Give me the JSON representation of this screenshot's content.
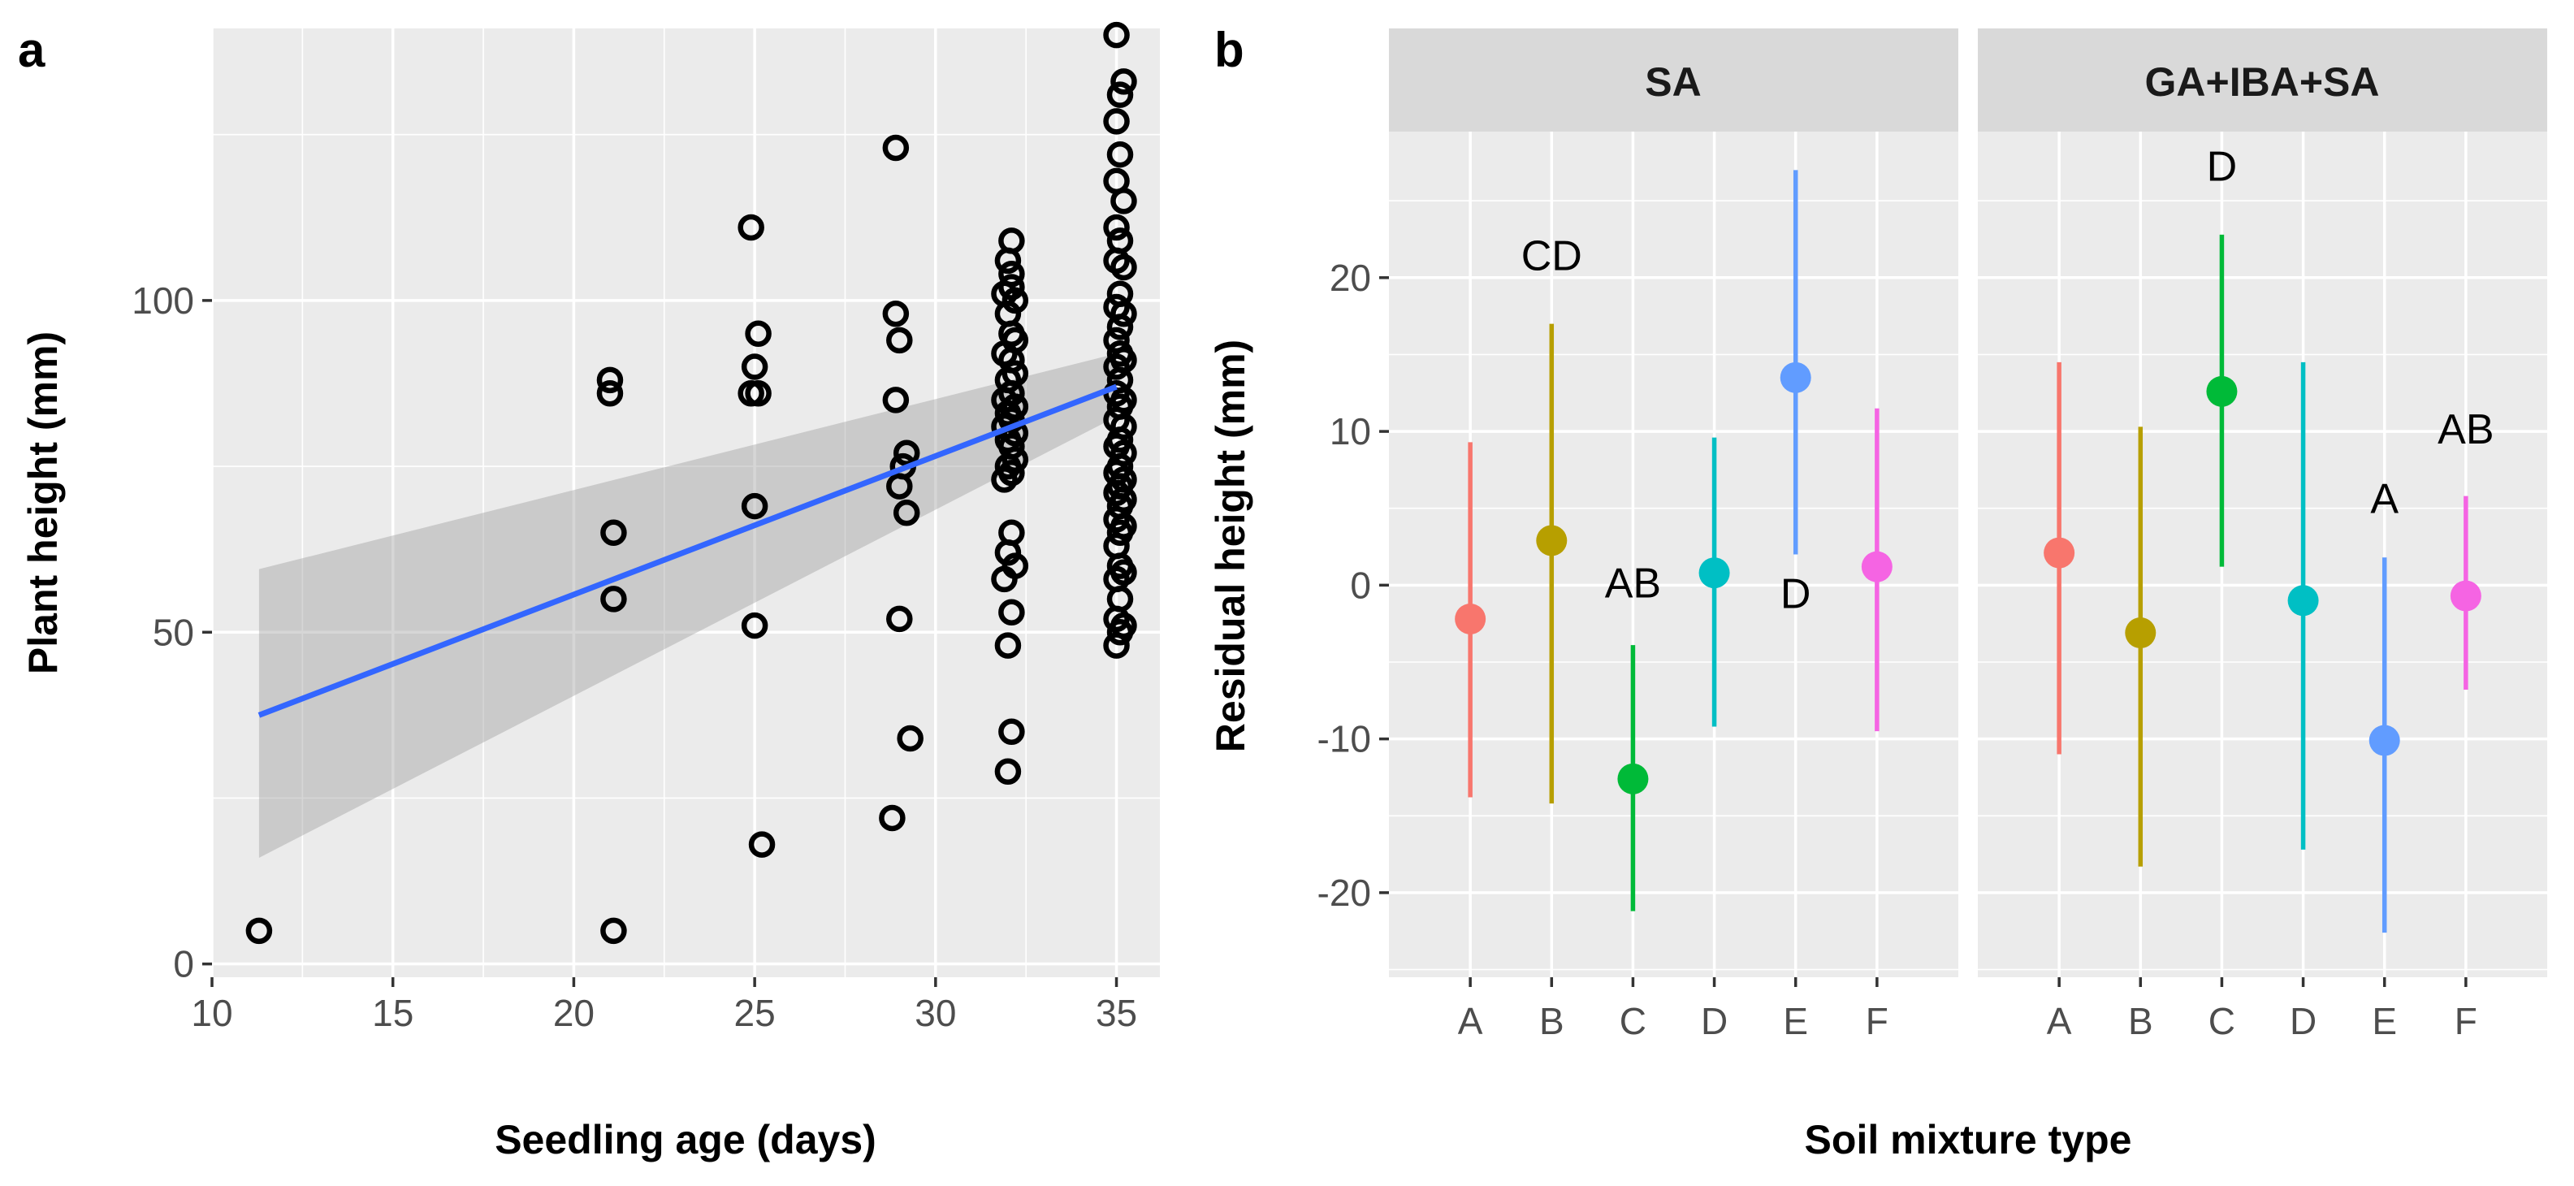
{
  "chart_data": [
    {
      "panel": "a",
      "type": "scatter",
      "xlabel": "Seedling age (days)",
      "ylabel": "Plant height (mm)",
      "xlim": [
        10,
        36.2
      ],
      "ylim": [
        -2,
        141
      ],
      "x_ticks": [
        10,
        15,
        20,
        25,
        30,
        35
      ],
      "y_ticks": [
        0,
        50,
        100
      ],
      "points": [
        [
          11.3,
          5
        ],
        [
          21.0,
          86
        ],
        [
          21.0,
          88
        ],
        [
          21.1,
          65
        ],
        [
          21.1,
          55
        ],
        [
          21.1,
          5
        ],
        [
          24.9,
          111
        ],
        [
          25.1,
          95
        ],
        [
          25.0,
          90
        ],
        [
          24.9,
          86
        ],
        [
          25.1,
          86
        ],
        [
          25.0,
          69
        ],
        [
          25.0,
          51
        ],
        [
          25.2,
          18
        ],
        [
          28.9,
          123
        ],
        [
          28.9,
          98
        ],
        [
          29.0,
          94
        ],
        [
          28.9,
          85
        ],
        [
          29.2,
          77
        ],
        [
          29.1,
          75
        ],
        [
          29.0,
          72
        ],
        [
          29.2,
          68
        ],
        [
          29.0,
          52
        ],
        [
          29.3,
          34
        ],
        [
          28.8,
          22
        ],
        [
          32.1,
          109
        ],
        [
          32.0,
          106
        ],
        [
          32.1,
          104
        ],
        [
          32.1,
          102
        ],
        [
          31.9,
          101
        ],
        [
          32.2,
          100
        ],
        [
          32.0,
          98
        ],
        [
          32.1,
          95
        ],
        [
          32.2,
          94
        ],
        [
          31.9,
          92
        ],
        [
          32.1,
          91
        ],
        [
          32.2,
          89
        ],
        [
          32.0,
          88
        ],
        [
          32.1,
          86
        ],
        [
          31.9,
          85
        ],
        [
          32.2,
          84
        ],
        [
          32.0,
          83
        ],
        [
          32.1,
          82
        ],
        [
          31.9,
          81
        ],
        [
          32.2,
          80
        ],
        [
          32.0,
          79
        ],
        [
          32.1,
          78
        ],
        [
          32.2,
          76
        ],
        [
          32.0,
          75
        ],
        [
          32.1,
          74
        ],
        [
          31.9,
          73
        ],
        [
          32.1,
          65
        ],
        [
          32.0,
          62
        ],
        [
          32.2,
          60
        ],
        [
          31.9,
          58
        ],
        [
          32.1,
          53
        ],
        [
          32.0,
          48
        ],
        [
          32.1,
          35
        ],
        [
          32.0,
          29
        ],
        [
          35.0,
          140
        ],
        [
          35.2,
          133
        ],
        [
          35.1,
          131
        ],
        [
          35.0,
          127
        ],
        [
          35.1,
          122
        ],
        [
          35.0,
          118
        ],
        [
          35.2,
          115
        ],
        [
          35.0,
          111
        ],
        [
          35.1,
          109
        ],
        [
          35.0,
          106
        ],
        [
          35.2,
          105
        ],
        [
          35.1,
          101
        ],
        [
          35.0,
          99
        ],
        [
          35.2,
          98
        ],
        [
          35.1,
          96
        ],
        [
          35.0,
          94
        ],
        [
          35.1,
          92
        ],
        [
          35.2,
          91
        ],
        [
          35.0,
          90
        ],
        [
          35.1,
          88
        ],
        [
          35.0,
          86
        ],
        [
          35.2,
          85
        ],
        [
          35.1,
          84
        ],
        [
          35.0,
          82
        ],
        [
          35.2,
          81
        ],
        [
          35.1,
          79
        ],
        [
          35.0,
          78
        ],
        [
          35.2,
          77
        ],
        [
          35.1,
          75
        ],
        [
          35.0,
          74
        ],
        [
          35.2,
          73
        ],
        [
          35.1,
          72
        ],
        [
          35.0,
          71
        ],
        [
          35.2,
          70
        ],
        [
          35.1,
          69
        ],
        [
          35.0,
          67
        ],
        [
          35.2,
          66
        ],
        [
          35.1,
          65
        ],
        [
          35.0,
          63
        ],
        [
          35.1,
          60
        ],
        [
          35.2,
          59
        ],
        [
          35.0,
          58
        ],
        [
          35.1,
          55
        ],
        [
          35.0,
          52
        ],
        [
          35.2,
          51
        ],
        [
          35.1,
          50
        ],
        [
          35.0,
          48
        ]
      ],
      "fit": {
        "x": [
          11.3,
          35.0
        ],
        "y": [
          37.5,
          87.0
        ],
        "ci_lower": [
          16.0,
          82.5
        ],
        "ci_upper": [
          59.5,
          92.0
        ],
        "color": "#3366FF",
        "band_color": "#999999"
      }
    },
    {
      "panel": "b",
      "type": "pointrange",
      "xlabel": "Soil mixture type",
      "ylabel": "Residual height (mm)",
      "ylim": [
        -25.5,
        29.5
      ],
      "y_ticks": [
        -20,
        -10,
        0,
        10,
        20
      ],
      "categories": [
        "A",
        "B",
        "C",
        "D",
        "E",
        "F"
      ],
      "colors": [
        "#F8766D",
        "#B79F00",
        "#00BA38",
        "#00BFC4",
        "#619CFF",
        "#F564E3"
      ],
      "facets": [
        {
          "label": "SA",
          "points": [
            {
              "mean": -2.2,
              "low": -13.8,
              "high": 9.3
            },
            {
              "mean": 2.9,
              "low": -14.2,
              "high": 17.0
            },
            {
              "mean": -12.6,
              "low": -21.2,
              "high": -3.9
            },
            {
              "mean": 0.8,
              "low": -9.2,
              "high": 9.6
            },
            {
              "mean": 13.5,
              "low": 2.0,
              "high": 27.0
            },
            {
              "mean": 1.2,
              "low": -9.5,
              "high": 11.5
            }
          ],
          "letters": [
            {
              "category": "B",
              "text": "CD",
              "y": 20.5
            },
            {
              "category": "C",
              "text": "AB",
              "y": -0.8
            },
            {
              "category": "E",
              "text": "D",
              "y": -1.5
            }
          ]
        },
        {
          "label": "GA+IBA+SA",
          "points": [
            {
              "mean": 2.1,
              "low": -11.0,
              "high": 14.5
            },
            {
              "mean": -3.1,
              "low": -18.3,
              "high": 10.3
            },
            {
              "mean": 12.6,
              "low": 1.2,
              "high": 22.8
            },
            {
              "mean": -1.0,
              "low": -17.2,
              "high": 14.5
            },
            {
              "mean": -10.1,
              "low": -22.6,
              "high": 1.8
            },
            {
              "mean": -0.7,
              "low": -6.8,
              "high": 5.8
            }
          ],
          "letters": [
            {
              "category": "C",
              "text": "D",
              "y": 26.3
            },
            {
              "category": "E",
              "text": "A",
              "y": 4.7
            },
            {
              "category": "F",
              "text": "AB",
              "y": 9.2
            }
          ]
        }
      ]
    }
  ]
}
